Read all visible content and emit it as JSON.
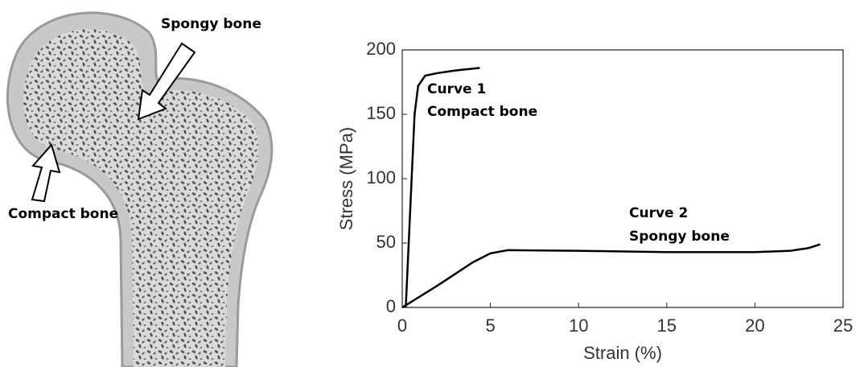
{
  "diagram": {
    "labels": [
      "Spongy bone",
      "Compact bone"
    ]
  },
  "chart_data": {
    "type": "line",
    "xlabel": "Strain (%)",
    "ylabel": "Stress (MPa)",
    "xlim": [
      0,
      25
    ],
    "ylim": [
      0,
      200
    ],
    "xticks": [
      0,
      5,
      10,
      15,
      20,
      25
    ],
    "yticks": [
      0,
      50,
      100,
      150,
      200
    ],
    "grid": false,
    "series": [
      {
        "color": "#000000",
        "x": [
          0.2,
          0.5,
          0.7,
          0.9,
          1.3,
          2,
          3,
          4.4
        ],
        "values": [
          0,
          90,
          150,
          172,
          180,
          182,
          184,
          186
        ]
      },
      {
        "color": "#000000",
        "x": [
          0,
          2,
          4,
          5,
          6,
          10,
          15,
          20,
          22,
          23,
          23.7
        ],
        "values": [
          0,
          17,
          35,
          42,
          44.5,
          44,
          43,
          43,
          44,
          46,
          49
        ]
      }
    ],
    "annotations": [
      "Curve 1",
      "Compact bone",
      "Curve 2",
      "Spongy bone"
    ]
  }
}
